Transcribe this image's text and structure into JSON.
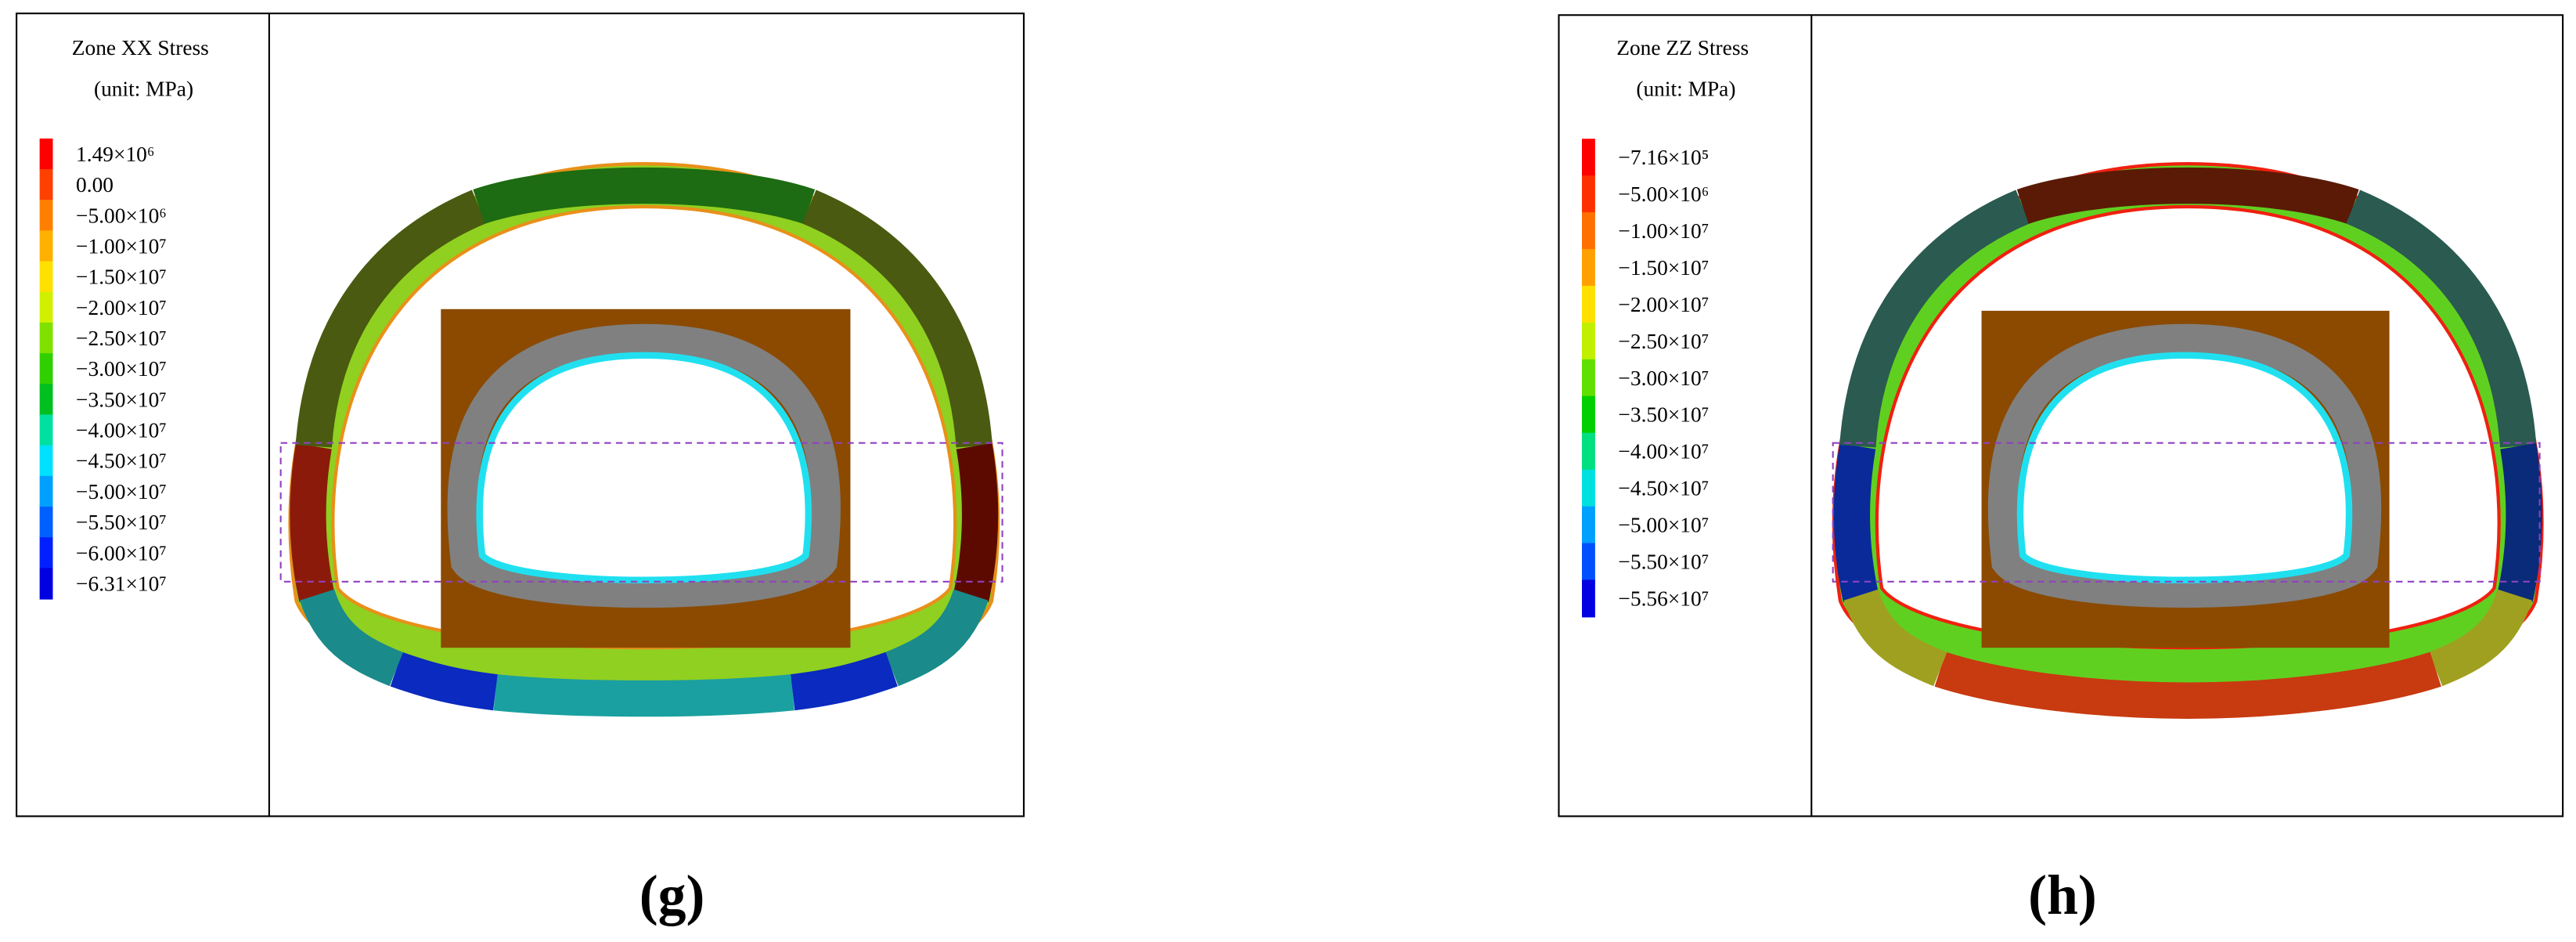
{
  "panels": [
    {
      "title": "Zone XX Stress",
      "unit": "(unit: MPa)",
      "caption": "(g)",
      "legend": [
        {
          "label": "1.49×10⁶",
          "color": "#ff0000"
        },
        {
          "label": "0.00",
          "color": "#ff4000"
        },
        {
          "label": "−5.00×10⁶",
          "color": "#ff8000"
        },
        {
          "label": "−1.00×10⁷",
          "color": "#ffb000"
        },
        {
          "label": "−1.50×10⁷",
          "color": "#ffe000"
        },
        {
          "label": "−2.00×10⁷",
          "color": "#d0f000"
        },
        {
          "label": "−2.50×10⁷",
          "color": "#80e000"
        },
        {
          "label": "−3.00×10⁷",
          "color": "#30d000"
        },
        {
          "label": "−3.50×10⁷",
          "color": "#00c020"
        },
        {
          "label": "−4.00×10⁷",
          "color": "#00e0a0"
        },
        {
          "label": "−4.50×10⁷",
          "color": "#00e0ff"
        },
        {
          "label": "−5.00×10⁷",
          "color": "#00a0ff"
        },
        {
          "label": "−5.50×10⁷",
          "color": "#0060ff"
        },
        {
          "label": "−6.00×10⁷",
          "color": "#0020ff"
        },
        {
          "label": "−6.31×10⁷",
          "color": "#0000e0"
        }
      ]
    },
    {
      "title": "Zone ZZ Stress",
      "unit": "(unit: MPa)",
      "caption": "(h)",
      "legend": [
        {
          "label": "−7.16×10⁵",
          "color": "#ff0000"
        },
        {
          "label": "−5.00×10⁶",
          "color": "#ff3000"
        },
        {
          "label": "−1.00×10⁷",
          "color": "#ff7000"
        },
        {
          "label": "−1.50×10⁷",
          "color": "#ffa000"
        },
        {
          "label": "−2.00×10⁷",
          "color": "#ffe000"
        },
        {
          "label": "−2.50×10⁷",
          "color": "#c0f000"
        },
        {
          "label": "−3.00×10⁷",
          "color": "#60e000"
        },
        {
          "label": "−3.50×10⁷",
          "color": "#00d000"
        },
        {
          "label": "−4.00×10⁷",
          "color": "#00e080"
        },
        {
          "label": "−4.50×10⁷",
          "color": "#00e0e0"
        },
        {
          "label": "−5.00×10⁷",
          "color": "#00a0ff"
        },
        {
          "label": "−5.50×10⁷",
          "color": "#0050ff"
        },
        {
          "label": "−5.56×10⁷",
          "color": "#0000e0"
        }
      ]
    }
  ]
}
